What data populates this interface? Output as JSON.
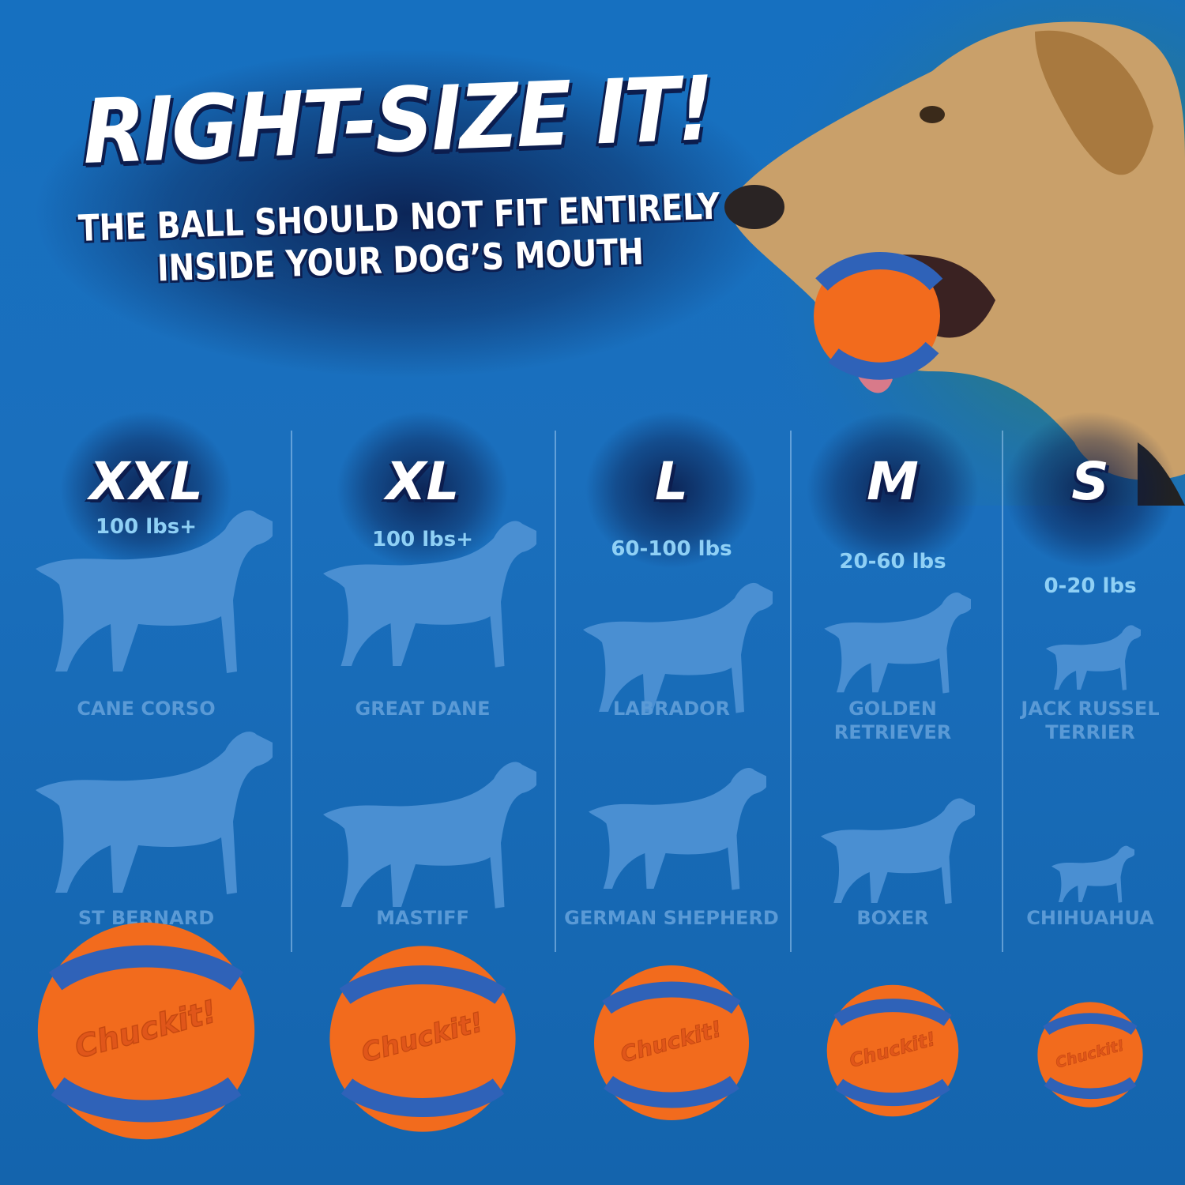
{
  "headline": "RIGHT-SIZE IT!",
  "subheadline_line1": "THE BALL SHOULD NOT FIT ENTIRELY",
  "subheadline_line2": "INSIDE YOUR DOG’S MOUTH",
  "brand_logo": "Chuckit!",
  "colors": {
    "background": "#1670c0",
    "silhouette": "#4a8fd2",
    "ball_orange": "#f26b1d",
    "ball_blue": "#2f62b8",
    "weight_text": "#8fd0f5"
  },
  "sizes": [
    {
      "label": "XXL",
      "weight": "100 lbs+",
      "breed1": "CANE CORSO",
      "breed2": "ST BERNARD"
    },
    {
      "label": "XL",
      "weight": "100 lbs+",
      "breed1": "GREAT DANE",
      "breed2": "MASTIFF"
    },
    {
      "label": "L",
      "weight": "60-100 lbs",
      "breed1": "LABRADOR",
      "breed2": "GERMAN SHEPHERD"
    },
    {
      "label": "M",
      "weight": "20-60 lbs",
      "breed1": "GOLDEN RETRIEVER",
      "breed2": "BOXER"
    },
    {
      "label": "S",
      "weight": "0-20 lbs",
      "breed1": "JACK RUSSEL TERRIER",
      "breed2": "CHIHUAHUA"
    }
  ]
}
